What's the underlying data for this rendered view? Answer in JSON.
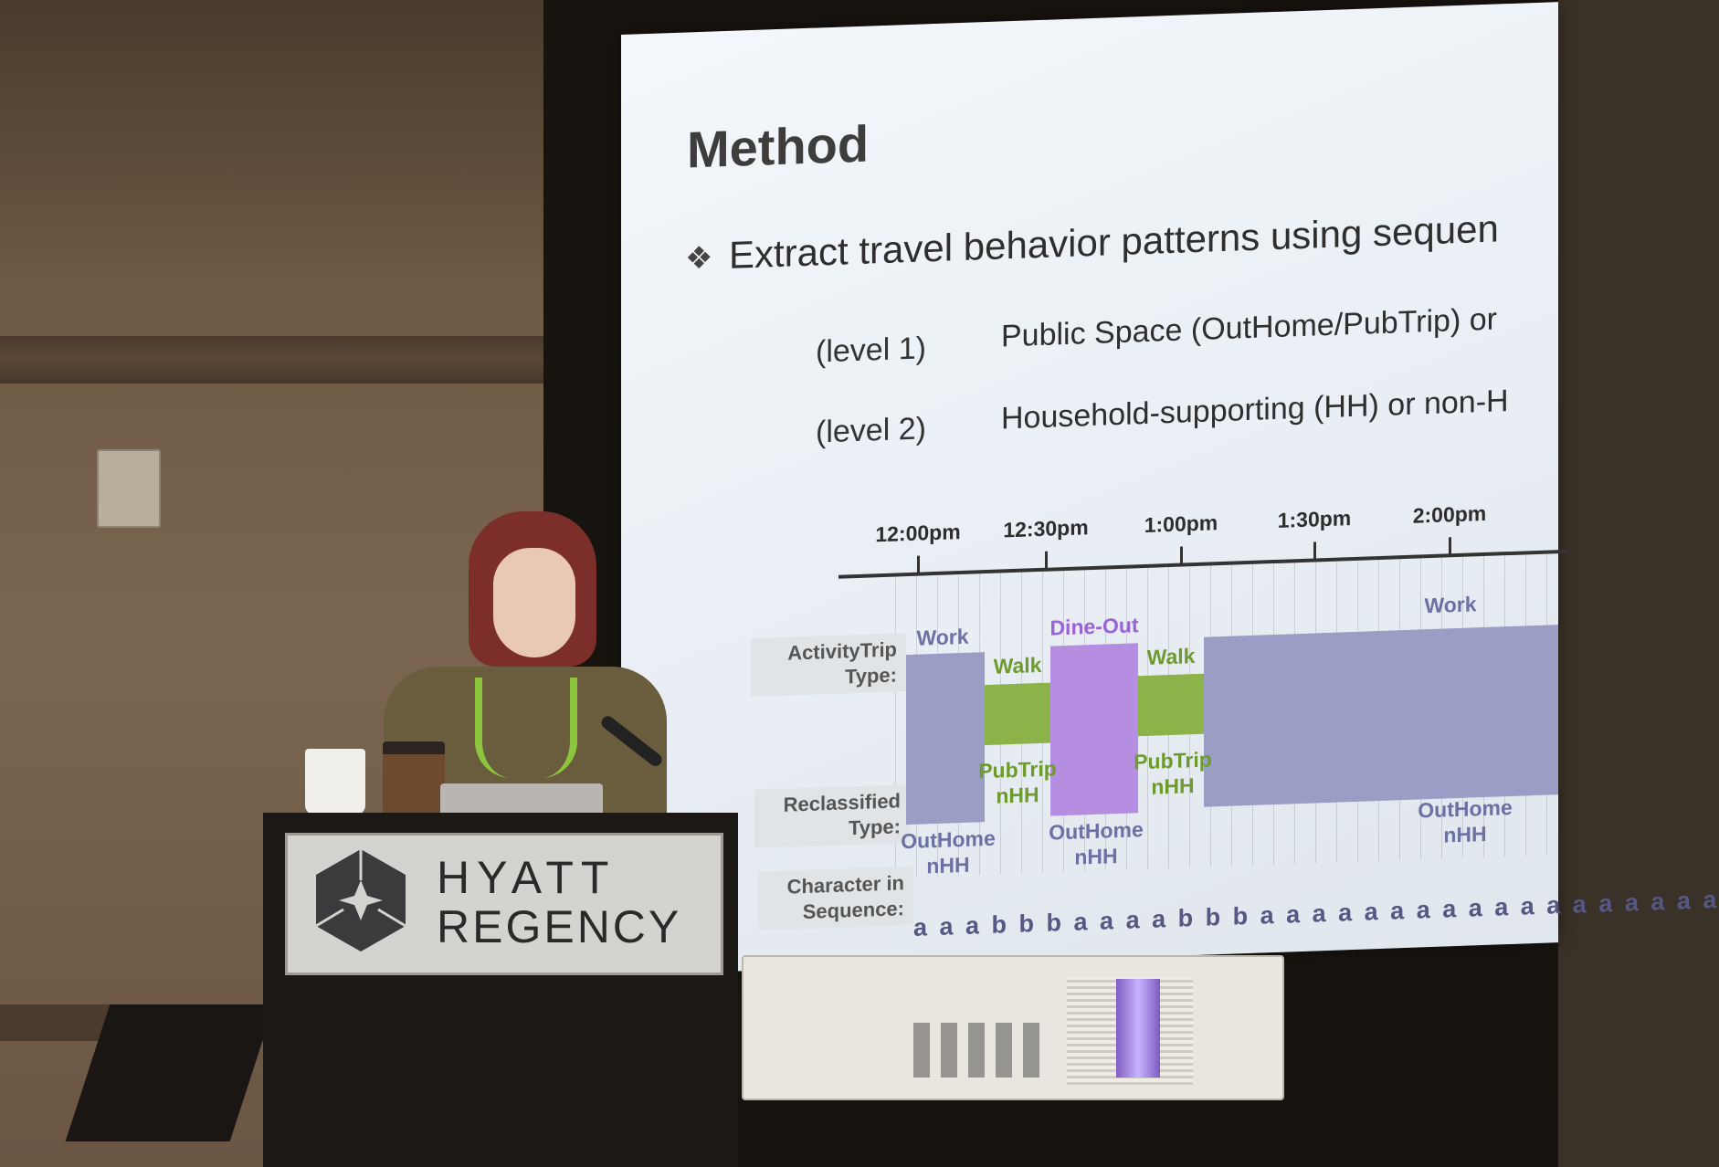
{
  "slide": {
    "title": "Method",
    "bullet_icon": "diamond-bullet-icon",
    "bullet_text": "Extract travel behavior patterns using sequen",
    "level1_tag": "(level 1)",
    "level1_text": "Public Space (OutHome/PubTrip) or",
    "level2_tag": "(level 2)",
    "level2_text": "Household-supporting (HH) or non-H"
  },
  "diagram": {
    "time_labels": [
      "12:00pm",
      "12:30pm",
      "1:00pm",
      "1:30pm",
      "2:00pm"
    ],
    "row_labels": {
      "activity_trip": "ActivityTrip\nType:",
      "reclassified": "Reclassified\nType:",
      "character": "Character in\nSequence:"
    },
    "activities": {
      "work1": "Work",
      "walk1": "Walk",
      "dine": "Dine-Out",
      "walk2": "Walk",
      "work2": "Work"
    },
    "reclassified": {
      "r1": "OutHome\nnHH",
      "r2": "PubTrip\nnHH",
      "r3": "OutHome\nnHH",
      "r4": "PubTrip\nnHH",
      "r5": "OutHome\nnHH"
    },
    "sequence": "a a a b b b a a a a b b b a a a a a a a a a a a a a a a a a a"
  },
  "podium": {
    "brand_line1": "HYATT",
    "brand_line2": "REGENCY"
  },
  "colors": {
    "work": "#9a9dc4",
    "walk": "#8cb34a",
    "dine_out": "#b58ee2"
  }
}
